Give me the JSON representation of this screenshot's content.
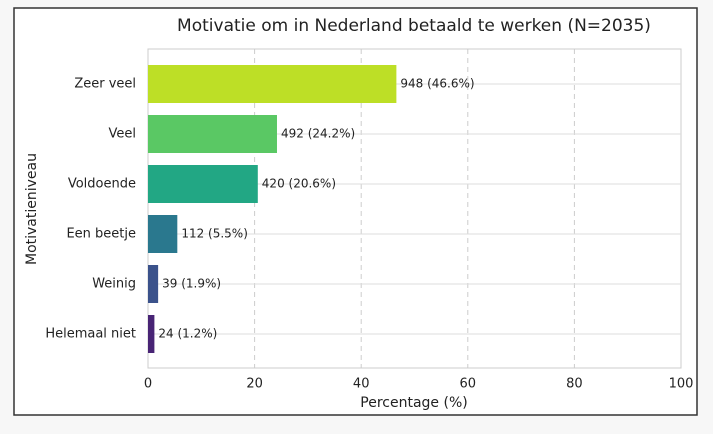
{
  "chart_data": {
    "type": "hbar",
    "title": "Motivatie om in Nederland betaald te werken (N=2035)",
    "x_label": "Percentage (%)",
    "y_label": "Motivatieniveau",
    "categories": [
      "Zeer veel",
      "Veel",
      "Voldoende",
      "Een beetje",
      "Weinig",
      "Helemaal niet"
    ],
    "values": [
      46.6,
      24.2,
      20.6,
      5.5,
      1.9,
      1.2
    ],
    "value_labels": [
      "948 (46.6%)",
      "492 (24.2%)",
      "420 (20.6%)",
      "112 (5.5%)",
      "39 (1.9%)",
      "24 (1.2%)"
    ],
    "colors": [
      "#bddf26",
      "#5ac864",
      "#22a784",
      "#2a788e",
      "#3b528b",
      "#482475"
    ],
    "xlim": [
      0,
      100
    ],
    "xticks": [
      0,
      20,
      40,
      60,
      80,
      100
    ],
    "grid": true
  }
}
